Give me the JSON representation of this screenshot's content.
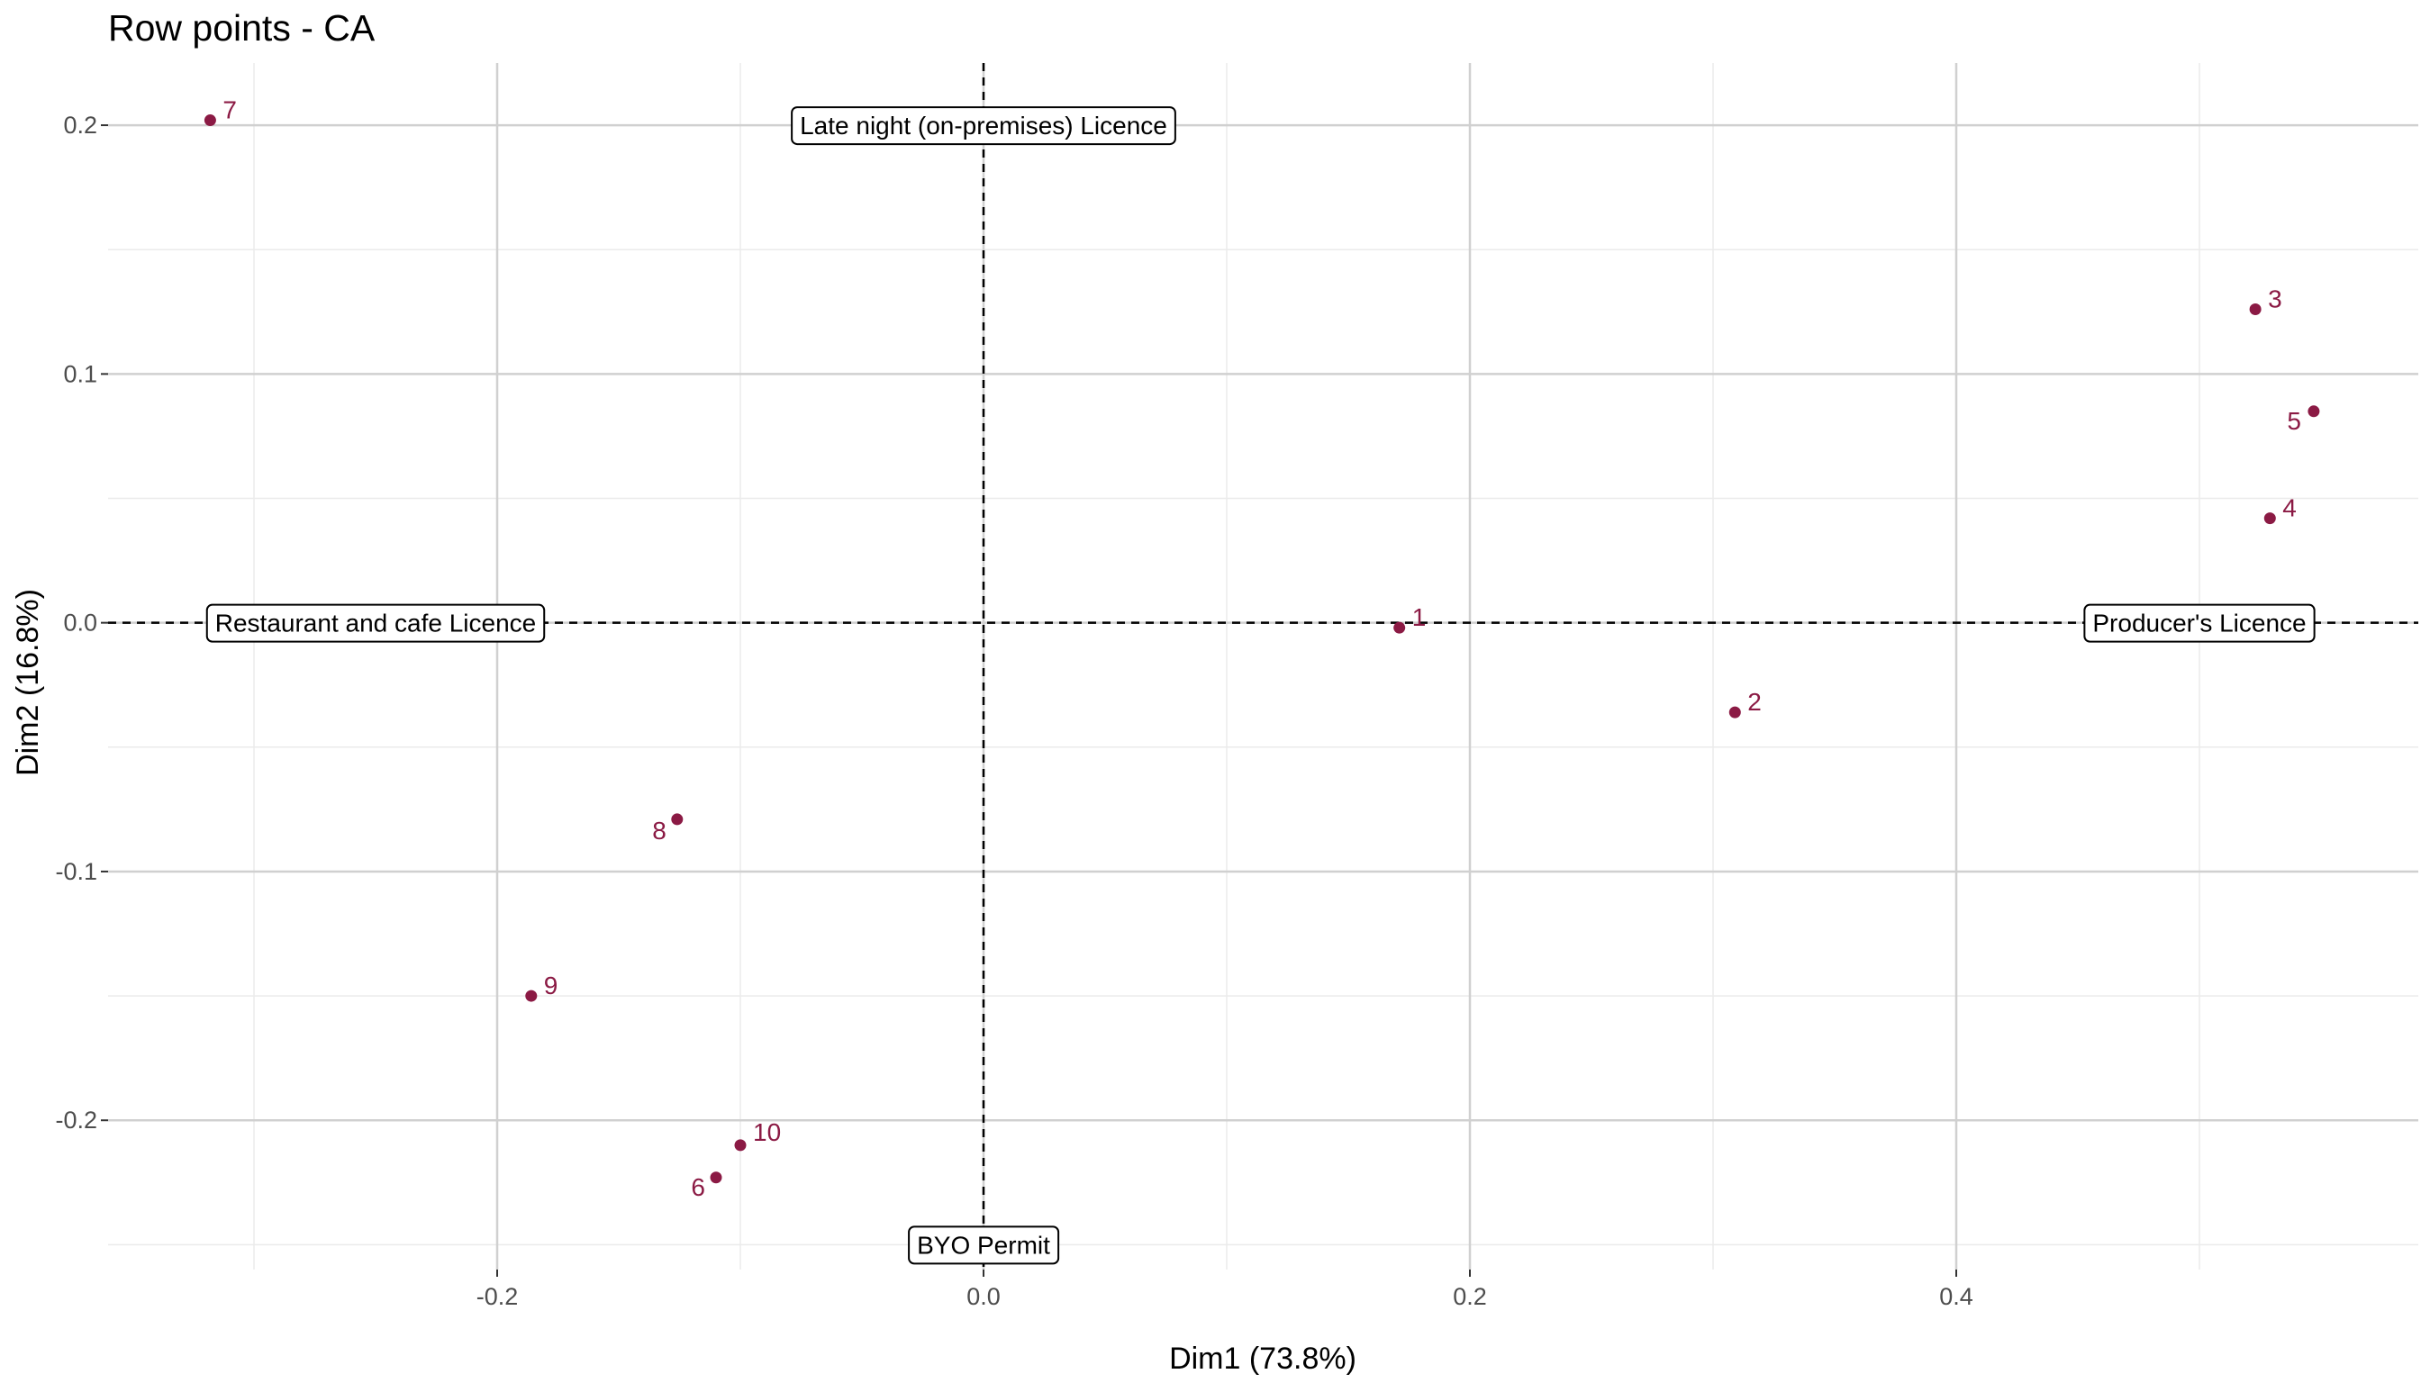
{
  "chart_data": {
    "type": "scatter",
    "title": "Row points - CA",
    "xlabel": "Dim1 (73.8%)",
    "ylabel": "Dim2 (16.8%)",
    "xlim": [
      -0.36,
      0.59
    ],
    "ylim": [
      -0.26,
      0.225
    ],
    "x_ticks": [
      -0.2,
      0.0,
      0.2,
      0.4
    ],
    "x_tick_labels": [
      "-0.2",
      "0.0",
      "0.2",
      "0.4"
    ],
    "y_ticks": [
      -0.2,
      -0.1,
      0.0,
      0.1,
      0.2
    ],
    "y_tick_labels": [
      "-0.2",
      "-0.1",
      "0.0",
      "0.1",
      "0.2"
    ],
    "grid": true,
    "reference_lines": {
      "x": 0,
      "y": 0,
      "style": "dashed"
    },
    "point_color": "#8B1A44",
    "points": [
      {
        "label": "1",
        "x": 0.171,
        "y": -0.002
      },
      {
        "label": "2",
        "x": 0.309,
        "y": -0.036
      },
      {
        "label": "3",
        "x": 0.523,
        "y": 0.126
      },
      {
        "label": "4",
        "x": 0.529,
        "y": 0.042
      },
      {
        "label": "5",
        "x": 0.547,
        "y": 0.085
      },
      {
        "label": "6",
        "x": -0.11,
        "y": -0.223
      },
      {
        "label": "7",
        "x": -0.318,
        "y": 0.202
      },
      {
        "label": "8",
        "x": -0.126,
        "y": -0.079
      },
      {
        "label": "9",
        "x": -0.186,
        "y": -0.15
      },
      {
        "label": "10",
        "x": -0.1,
        "y": -0.21
      }
    ],
    "column_labels": [
      {
        "label": "Late night (on-premises) Licence",
        "x": 0.0,
        "y": 0.2
      },
      {
        "label": "Restaurant and cafe Licence",
        "x": -0.25,
        "y": 0.0
      },
      {
        "label": "Producer's Licence",
        "x": 0.5,
        "y": 0.0
      },
      {
        "label": "BYO Permit",
        "x": 0.0,
        "y": -0.25
      }
    ]
  }
}
